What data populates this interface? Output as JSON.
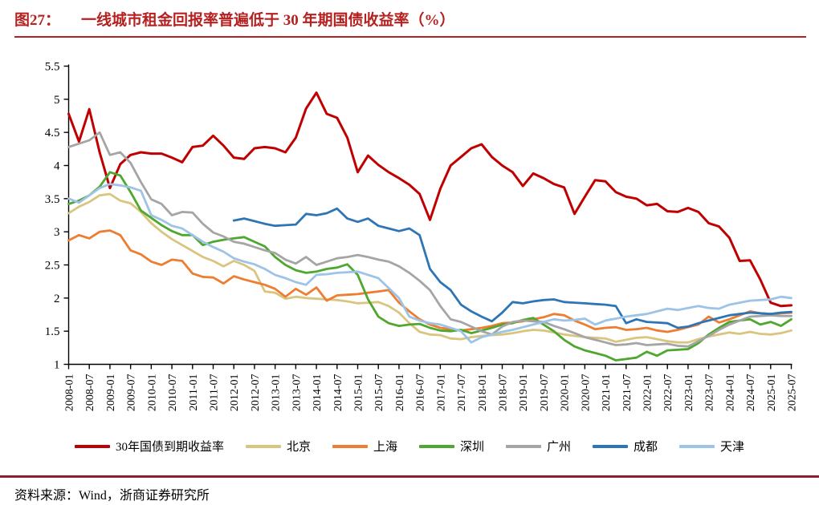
{
  "title": {
    "prefix": "图27：",
    "text": "一线城市租金回报率普遍低于 30 年期国债收益率（%）"
  },
  "source": "资料来源：Wind，浙商证券研究所",
  "colors": {
    "title_red": "#b42120",
    "divider_maroon": "#8e1f2f",
    "axis": "#000000"
  },
  "chart_data": {
    "type": "line",
    "title": "一线城市租金回报率普遍低于 30 年期国债收益率（%）",
    "xlabel": "",
    "ylabel": "",
    "ylim": [
      1,
      5.5
    ],
    "y_tick_labels": [
      "5.5",
      "5",
      "4.5",
      "4",
      "3.5",
      "3",
      "2.5",
      "2",
      "1.5",
      "1"
    ],
    "y_ticks": [
      5.5,
      5,
      4.5,
      4,
      3.5,
      3,
      2.5,
      2,
      1.5,
      1
    ],
    "grid": false,
    "legend_position": "bottom",
    "x_tick_labels": [
      "2008-01",
      "2008-07",
      "2009-01",
      "2009-07",
      "2010-01",
      "2010-07",
      "2011-01",
      "2011-07",
      "2012-01",
      "2012-07",
      "2013-01",
      "2013-07",
      "2014-01",
      "2014-07",
      "2015-01",
      "2015-07",
      "2016-01",
      "2016-07",
      "2017-01",
      "2017-07",
      "2018-01",
      "2018-07",
      "2019-01",
      "2019-07",
      "2020-01",
      "2020-07",
      "2021-01",
      "2021-07",
      "2022-01",
      "2022-07",
      "2023-01",
      "2023-07",
      "2024-01",
      "2024-07",
      "2025-01",
      "2025-07"
    ],
    "x": [
      "2008-01",
      "2008-04",
      "2008-07",
      "2008-10",
      "2009-01",
      "2009-04",
      "2009-07",
      "2009-10",
      "2010-01",
      "2010-04",
      "2010-07",
      "2010-10",
      "2011-01",
      "2011-04",
      "2011-07",
      "2011-10",
      "2012-01",
      "2012-04",
      "2012-07",
      "2012-10",
      "2013-01",
      "2013-04",
      "2013-07",
      "2013-10",
      "2014-01",
      "2014-04",
      "2014-07",
      "2014-10",
      "2015-01",
      "2015-04",
      "2015-07",
      "2015-10",
      "2016-01",
      "2016-04",
      "2016-07",
      "2016-10",
      "2017-01",
      "2017-04",
      "2017-07",
      "2017-10",
      "2018-01",
      "2018-04",
      "2018-07",
      "2018-10",
      "2019-01",
      "2019-04",
      "2019-07",
      "2019-10",
      "2020-01",
      "2020-04",
      "2020-07",
      "2020-10",
      "2021-01",
      "2021-04",
      "2021-07",
      "2021-10",
      "2022-01",
      "2022-04",
      "2022-07",
      "2022-10",
      "2023-01",
      "2023-04",
      "2023-07",
      "2023-10",
      "2024-01",
      "2024-04",
      "2024-07",
      "2024-10",
      "2025-01",
      "2025-04",
      "2025-07"
    ],
    "series": [
      {
        "name": "30年国债到期收益率",
        "color": "#c00000",
        "width": 3,
        "values": [
          4.78,
          4.36,
          4.85,
          4.2,
          3.66,
          4.02,
          4.16,
          4.2,
          4.18,
          4.18,
          4.12,
          4.05,
          4.28,
          4.3,
          4.45,
          4.3,
          4.12,
          4.1,
          4.26,
          4.28,
          4.26,
          4.2,
          4.42,
          4.86,
          5.1,
          4.78,
          4.72,
          4.42,
          3.9,
          4.15,
          4.01,
          3.9,
          3.81,
          3.71,
          3.57,
          3.18,
          3.65,
          4.0,
          4.13,
          4.26,
          4.32,
          4.13,
          4.0,
          3.9,
          3.69,
          3.88,
          3.81,
          3.72,
          3.67,
          3.27,
          3.53,
          3.78,
          3.76,
          3.6,
          3.53,
          3.5,
          3.4,
          3.42,
          3.31,
          3.3,
          3.36,
          3.3,
          3.13,
          3.08,
          2.91,
          2.56,
          2.57,
          2.28,
          1.93,
          1.88,
          1.89
        ]
      },
      {
        "name": "北京",
        "color": "#d9c57f",
        "width": 2.8,
        "values": [
          3.28,
          3.38,
          3.45,
          3.55,
          3.57,
          3.47,
          3.43,
          3.3,
          3.13,
          3.0,
          2.89,
          2.8,
          2.71,
          2.62,
          2.56,
          2.48,
          2.56,
          2.5,
          2.41,
          2.1,
          2.08,
          1.99,
          2.02,
          2.0,
          1.99,
          1.98,
          1.97,
          1.95,
          1.92,
          1.93,
          1.94,
          1.88,
          1.78,
          1.62,
          1.49,
          1.45,
          1.44,
          1.39,
          1.38,
          1.41,
          1.43,
          1.44,
          1.45,
          1.47,
          1.5,
          1.52,
          1.51,
          1.48,
          1.45,
          1.43,
          1.41,
          1.4,
          1.39,
          1.34,
          1.37,
          1.4,
          1.41,
          1.38,
          1.35,
          1.33,
          1.33,
          1.38,
          1.42,
          1.45,
          1.48,
          1.46,
          1.49,
          1.46,
          1.45,
          1.47,
          1.51
        ]
      },
      {
        "name": "上海",
        "color": "#ed7d31",
        "width": 2.8,
        "values": [
          2.87,
          2.95,
          2.9,
          3.0,
          3.02,
          2.95,
          2.72,
          2.66,
          2.55,
          2.5,
          2.58,
          2.56,
          2.37,
          2.32,
          2.31,
          2.22,
          2.33,
          2.28,
          2.24,
          2.2,
          2.14,
          2.02,
          2.14,
          2.05,
          2.16,
          1.96,
          2.04,
          2.05,
          2.06,
          2.08,
          2.1,
          2.12,
          1.93,
          1.8,
          1.68,
          1.6,
          1.55,
          1.53,
          1.51,
          1.53,
          1.55,
          1.58,
          1.62,
          1.63,
          1.65,
          1.68,
          1.71,
          1.76,
          1.74,
          1.66,
          1.6,
          1.53,
          1.55,
          1.56,
          1.52,
          1.53,
          1.55,
          1.51,
          1.49,
          1.52,
          1.56,
          1.6,
          1.72,
          1.63,
          1.68,
          1.74,
          1.8,
          1.77,
          1.76,
          1.77,
          1.78
        ]
      },
      {
        "name": "深圳",
        "color": "#4ea72e",
        "width": 2.8,
        "values": [
          3.42,
          3.47,
          3.55,
          3.68,
          3.9,
          3.85,
          3.6,
          3.32,
          3.21,
          3.1,
          3.01,
          2.95,
          2.95,
          2.8,
          2.85,
          2.88,
          2.9,
          2.92,
          2.85,
          2.78,
          2.62,
          2.5,
          2.42,
          2.38,
          2.4,
          2.44,
          2.46,
          2.51,
          2.35,
          1.98,
          1.72,
          1.62,
          1.58,
          1.6,
          1.61,
          1.55,
          1.51,
          1.5,
          1.52,
          1.47,
          1.51,
          1.55,
          1.6,
          1.62,
          1.67,
          1.7,
          1.6,
          1.5,
          1.37,
          1.27,
          1.21,
          1.17,
          1.13,
          1.06,
          1.08,
          1.1,
          1.19,
          1.13,
          1.21,
          1.22,
          1.23,
          1.32,
          1.45,
          1.55,
          1.64,
          1.66,
          1.68,
          1.6,
          1.64,
          1.58,
          1.68
        ]
      },
      {
        "name": "广州",
        "color": "#a5a5a5",
        "width": 2.8,
        "values": [
          4.28,
          4.33,
          4.38,
          4.5,
          4.16,
          4.2,
          4.04,
          3.75,
          3.49,
          3.42,
          3.25,
          3.3,
          3.29,
          3.12,
          2.99,
          2.93,
          2.85,
          2.82,
          2.77,
          2.72,
          2.68,
          2.58,
          2.52,
          2.62,
          2.5,
          2.55,
          2.6,
          2.62,
          2.65,
          2.62,
          2.58,
          2.55,
          2.48,
          2.38,
          2.26,
          2.12,
          1.88,
          1.68,
          1.64,
          1.57,
          1.5,
          1.45,
          1.57,
          1.64,
          1.66,
          1.65,
          1.64,
          1.58,
          1.53,
          1.47,
          1.41,
          1.37,
          1.33,
          1.29,
          1.3,
          1.32,
          1.29,
          1.3,
          1.31,
          1.28,
          1.27,
          1.35,
          1.43,
          1.52,
          1.6,
          1.66,
          1.72,
          1.73,
          1.74,
          1.73,
          1.73
        ]
      },
      {
        "name": "成都",
        "color": "#2e75b6",
        "width": 2.8,
        "values": [
          null,
          null,
          null,
          null,
          null,
          null,
          null,
          null,
          null,
          null,
          null,
          null,
          null,
          null,
          null,
          null,
          3.17,
          3.2,
          3.16,
          3.12,
          3.09,
          3.1,
          3.11,
          3.27,
          3.25,
          3.28,
          3.35,
          3.2,
          3.15,
          3.2,
          3.09,
          3.05,
          3.01,
          3.05,
          2.95,
          2.44,
          2.24,
          2.12,
          1.9,
          1.8,
          1.72,
          1.65,
          1.78,
          1.94,
          1.92,
          1.95,
          1.97,
          1.98,
          1.94,
          1.93,
          1.92,
          1.91,
          1.9,
          1.88,
          1.62,
          1.68,
          1.64,
          1.63,
          1.62,
          1.55,
          1.57,
          1.62,
          1.66,
          1.7,
          1.74,
          1.76,
          1.78,
          1.77,
          1.76,
          1.78,
          1.79
        ]
      },
      {
        "name": "天津",
        "color": "#9dc3e6",
        "width": 2.8,
        "values": [
          3.5,
          3.44,
          3.55,
          3.66,
          3.72,
          3.7,
          3.67,
          3.62,
          3.25,
          3.18,
          3.09,
          3.05,
          2.95,
          2.85,
          2.77,
          2.7,
          2.6,
          2.55,
          2.51,
          2.44,
          2.35,
          2.3,
          2.24,
          2.2,
          2.35,
          2.36,
          2.38,
          2.39,
          2.4,
          2.35,
          2.3,
          2.15,
          2.0,
          1.72,
          1.66,
          1.62,
          1.6,
          1.55,
          1.5,
          1.33,
          1.41,
          1.45,
          1.49,
          1.52,
          1.56,
          1.6,
          1.64,
          1.68,
          1.66,
          1.67,
          1.69,
          1.6,
          1.66,
          1.69,
          1.72,
          1.74,
          1.76,
          1.8,
          1.84,
          1.82,
          1.85,
          1.88,
          1.85,
          1.84,
          1.9,
          1.93,
          1.96,
          1.97,
          1.98,
          2.02,
          2.0
        ]
      }
    ]
  }
}
